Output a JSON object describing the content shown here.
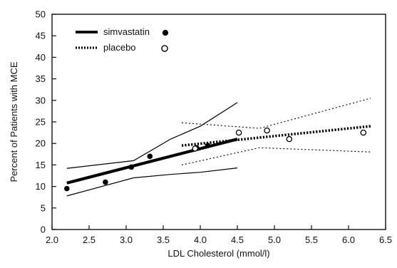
{
  "chart_data": {
    "type": "scatter",
    "title": "",
    "xlabel": "LDL Cholesterol (mmol/l)",
    "ylabel": "Percent of Patients with MCE",
    "xlim": [
      2.0,
      6.5
    ],
    "ylim": [
      0,
      50
    ],
    "xticks": [
      "2.0",
      "2.5",
      "3.0",
      "3.5",
      "4.0",
      "4.5",
      "5.0",
      "5.5",
      "6.0",
      "6.5"
    ],
    "yticks": [
      "0",
      "5",
      "10",
      "15",
      "20",
      "25",
      "30",
      "35",
      "40",
      "45",
      "50"
    ],
    "grid": false,
    "legend_position": "top-left",
    "series": [
      {
        "name": "simvastatin",
        "marker": "filled-circle",
        "line_style": "solid",
        "color": "#000000",
        "points": [
          {
            "x": 2.2,
            "y": 9.5
          },
          {
            "x": 2.72,
            "y": 11.0
          },
          {
            "x": 3.07,
            "y": 14.5
          },
          {
            "x": 3.32,
            "y": 17.0
          },
          {
            "x": 3.95,
            "y": 19.0
          },
          {
            "x": 4.1,
            "y": 19.5
          }
        ],
        "fit_line": [
          {
            "x": 2.2,
            "y": 10.8
          },
          {
            "x": 4.5,
            "y": 21.0
          }
        ],
        "upper_bound": [
          {
            "x": 2.2,
            "y": 14.2
          },
          {
            "x": 3.1,
            "y": 16.0
          },
          {
            "x": 3.6,
            "y": 21.0
          },
          {
            "x": 4.0,
            "y": 24.0
          },
          {
            "x": 4.5,
            "y": 29.5
          }
        ],
        "lower_bound": [
          {
            "x": 2.2,
            "y": 7.8
          },
          {
            "x": 3.1,
            "y": 12.0
          },
          {
            "x": 3.6,
            "y": 12.8
          },
          {
            "x": 4.0,
            "y": 13.3
          },
          {
            "x": 4.5,
            "y": 14.3
          }
        ]
      },
      {
        "name": "placebo",
        "marker": "open-circle",
        "line_style": "dotted",
        "color": "#000000",
        "points": [
          {
            "x": 3.93,
            "y": 18.8
          },
          {
            "x": 4.52,
            "y": 22.5
          },
          {
            "x": 4.9,
            "y": 23.0
          },
          {
            "x": 5.2,
            "y": 21.0
          },
          {
            "x": 6.2,
            "y": 22.5
          }
        ],
        "fit_line": [
          {
            "x": 3.75,
            "y": 19.5
          },
          {
            "x": 6.3,
            "y": 24.0
          }
        ],
        "upper_bound": [
          {
            "x": 3.75,
            "y": 24.8
          },
          {
            "x": 4.8,
            "y": 23.5
          },
          {
            "x": 6.3,
            "y": 30.5
          }
        ],
        "lower_bound": [
          {
            "x": 3.75,
            "y": 15.0
          },
          {
            "x": 4.8,
            "y": 19.0
          },
          {
            "x": 6.3,
            "y": 18.0
          }
        ]
      }
    ],
    "colors": {
      "axis": "#111111",
      "background": "#ffffff"
    }
  }
}
